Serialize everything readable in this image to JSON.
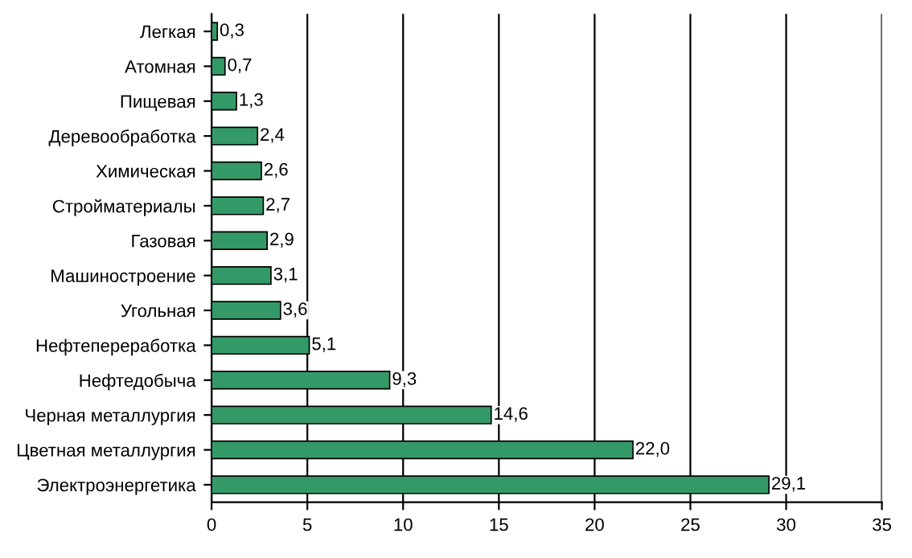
{
  "chart_data": {
    "type": "bar",
    "orientation": "horizontal",
    "categories": [
      "Легкая",
      "Атомная",
      "Пищевая",
      "Деревообработка",
      "Химическая",
      "Стройматериалы",
      "Газовая",
      "Машиностроение",
      "Угольная",
      "Нефтепереработка",
      "Нефтедобыча",
      "Черная металлургия",
      "Цветная металлургия",
      "Электроэнергетика"
    ],
    "values": [
      0.3,
      0.7,
      1.3,
      2.4,
      2.6,
      2.7,
      2.9,
      3.1,
      3.6,
      5.1,
      9.3,
      14.6,
      22.0,
      29.1
    ],
    "value_labels": [
      "0,3",
      "0,7",
      "1,3",
      "2,4",
      "2,6",
      "2,7",
      "2,9",
      "3,1",
      "3,6",
      "5,1",
      "9,3",
      "14,6",
      "22,0",
      "29,1"
    ],
    "color": "#339966",
    "xlim": [
      0,
      35
    ],
    "xticks": [
      0,
      5,
      10,
      15,
      20,
      25,
      30,
      35
    ],
    "grid": "x"
  }
}
